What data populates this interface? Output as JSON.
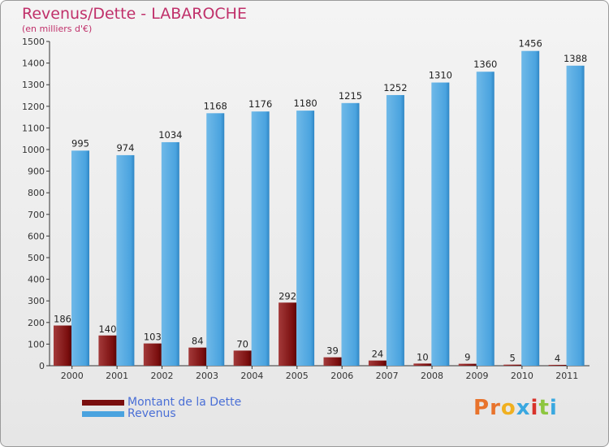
{
  "header": {
    "title": "Revenus/Dette - LABAROCHE",
    "subtitle": "(en milliers d'€)"
  },
  "colors": {
    "debt": "#7a0e0e",
    "debt_light": "#a33a3a",
    "revenue": "#4aa3df",
    "revenue_light": "#74bde9",
    "title": "#c0306a",
    "legend_text": "#4a6fd6"
  },
  "chart_data": {
    "type": "bar",
    "title": "Revenus/Dette - LABAROCHE",
    "ylabel": "(en milliers d'€)",
    "categories": [
      "2000",
      "2001",
      "2002",
      "2003",
      "2004",
      "2005",
      "2006",
      "2007",
      "2008",
      "2009",
      "2010",
      "2011"
    ],
    "series": [
      {
        "name": "Montant de la Dette",
        "values": [
          186,
          140,
          103,
          84,
          70,
          292,
          39,
          24,
          10,
          9,
          5,
          4
        ]
      },
      {
        "name": "Revenus",
        "values": [
          995,
          974,
          1034,
          1168,
          1176,
          1180,
          1215,
          1252,
          1310,
          1360,
          1456,
          1388
        ]
      }
    ],
    "ylim": [
      0,
      1500
    ],
    "yticks": [
      0,
      100,
      200,
      300,
      400,
      500,
      600,
      700,
      800,
      900,
      1000,
      1100,
      1200,
      1300,
      1400,
      1500
    ],
    "grid": false,
    "legend": "bottom-left"
  },
  "legend": {
    "debt_label": "Montant de la Dette",
    "revenue_label": "Revenus"
  },
  "logo": {
    "letters": [
      "P",
      "r",
      "o",
      "x",
      "i",
      "t",
      "i"
    ]
  }
}
